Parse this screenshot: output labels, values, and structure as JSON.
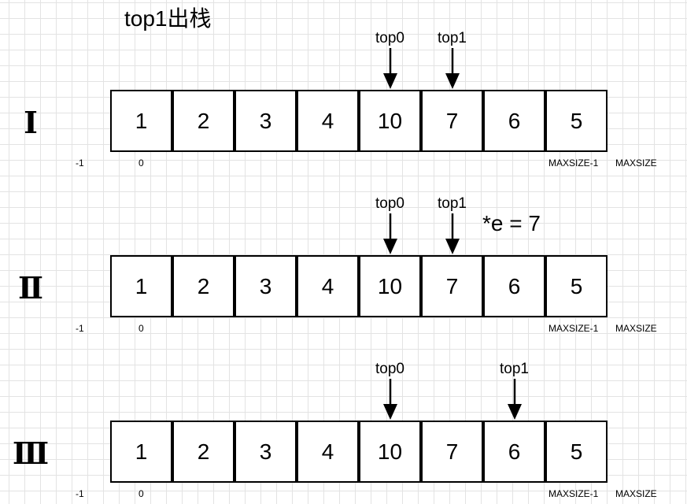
{
  "title": "top1出栈",
  "note": "*e = 7",
  "index_labels": {
    "neg_one": "-1",
    "zero": "0",
    "max_minus_one": "MAXSIZE-1",
    "max": "MAXSIZE"
  },
  "arrow_icon": "down-arrow-icon",
  "steps": [
    {
      "label": "Ⅰ",
      "cells": [
        "1",
        "2",
        "3",
        "4",
        "10",
        "7",
        "6",
        "5"
      ],
      "top0": {
        "text": "top0",
        "index": 4
      },
      "top1": {
        "text": "top1",
        "index": 5
      }
    },
    {
      "label": "Ⅱ",
      "cells": [
        "1",
        "2",
        "3",
        "4",
        "10",
        "7",
        "6",
        "5"
      ],
      "top0": {
        "text": "top0",
        "index": 4
      },
      "top1": {
        "text": "top1",
        "index": 5
      }
    },
    {
      "label": "Ⅲ",
      "cells": [
        "1",
        "2",
        "3",
        "4",
        "10",
        "7",
        "6",
        "5"
      ],
      "top0": {
        "text": "top0",
        "index": 4
      },
      "top1": {
        "text": "top1",
        "index": 6
      }
    }
  ]
}
